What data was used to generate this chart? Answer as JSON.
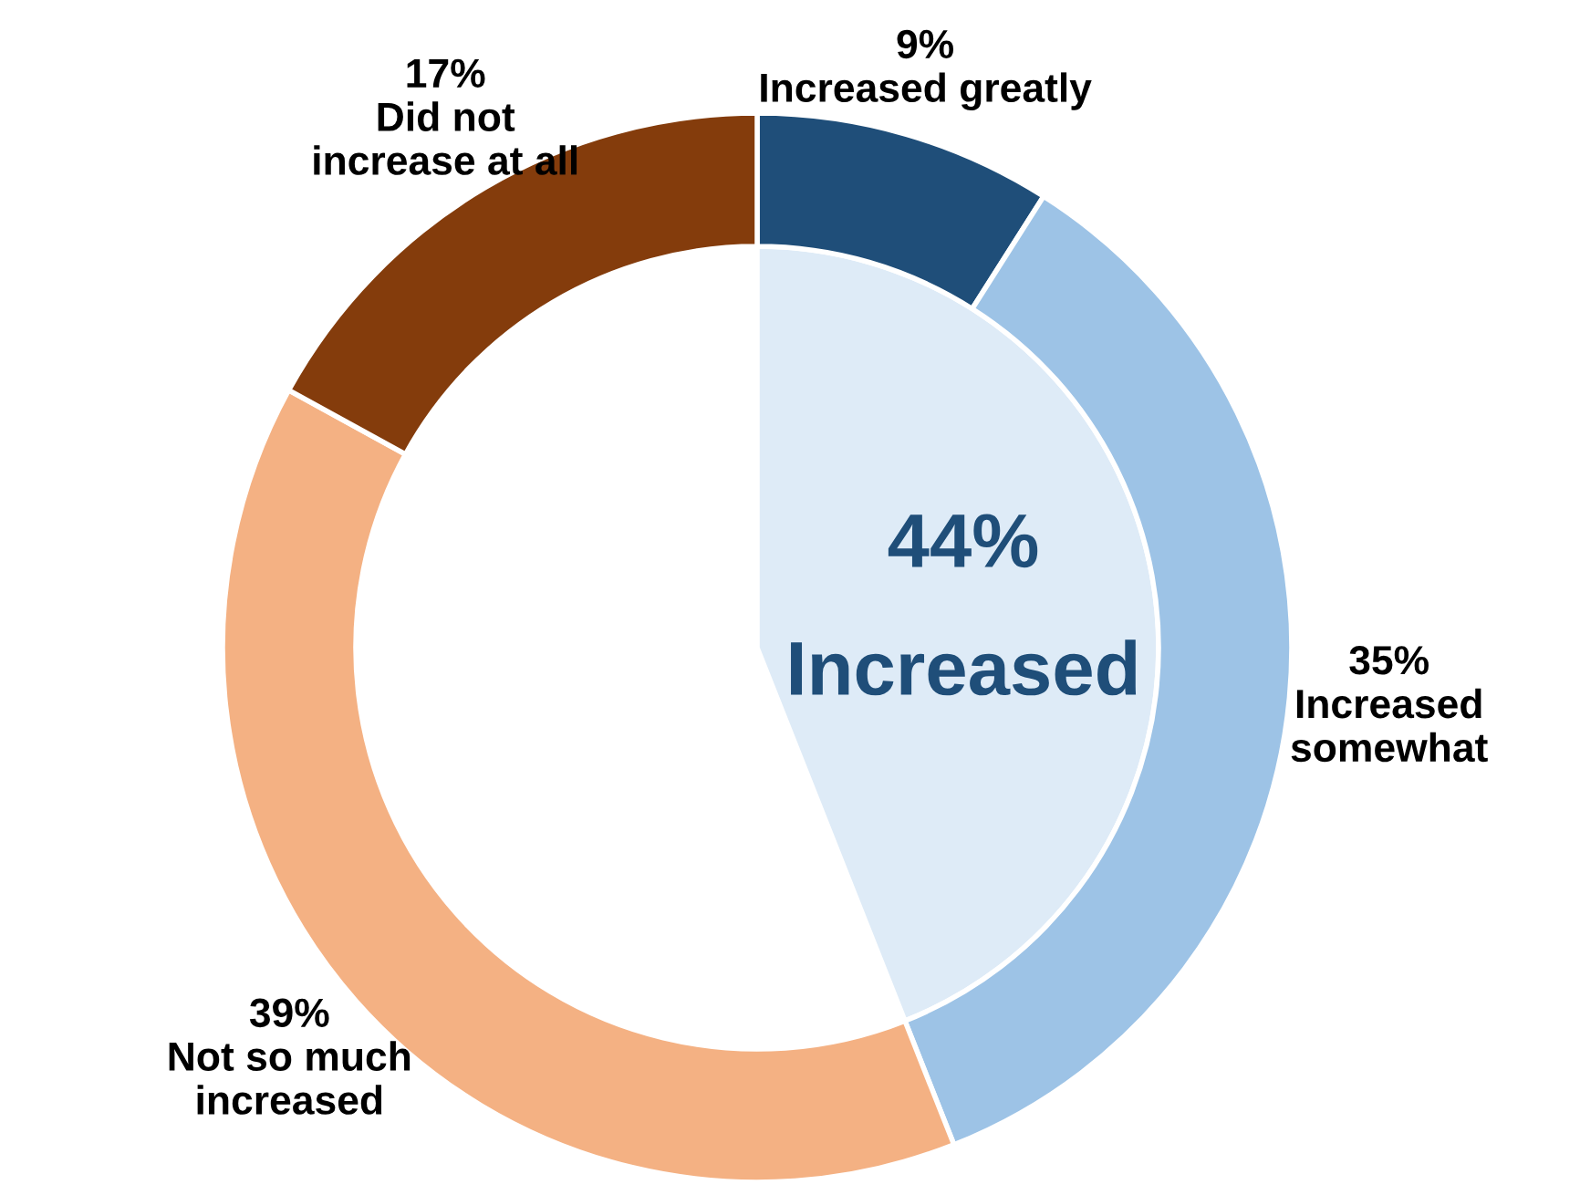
{
  "chart_data": {
    "type": "donut",
    "categories": [
      "Increased greatly",
      "Increased\nsomewhat",
      "Not so much\nincreased",
      "Did not\nincrease at all"
    ],
    "values": [
      9,
      35,
      39,
      17
    ],
    "colors": [
      "#1f4e79",
      "#9dc3e6",
      "#f4b183",
      "#843c0c"
    ],
    "value_labels": [
      "9%",
      "35%",
      "39%",
      "17%"
    ],
    "annotations": [
      "44%",
      "Increased"
    ]
  }
}
